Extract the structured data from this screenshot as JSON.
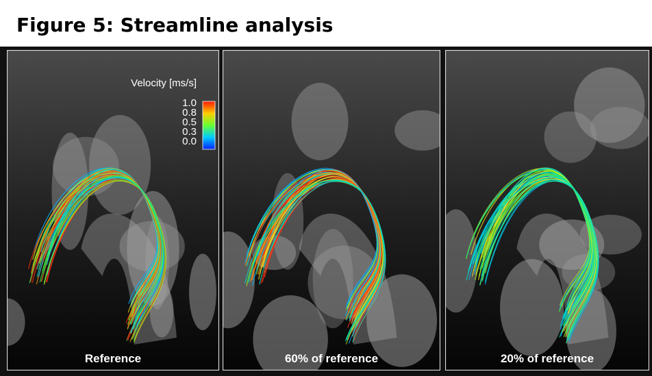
{
  "header": {
    "title": "Figure 5: Streamline analysis"
  },
  "panels": [
    {
      "caption": "Reference"
    },
    {
      "caption": "60% of reference"
    },
    {
      "caption": "20% of reference"
    }
  ],
  "colorbar": {
    "label": "Velocity [ms/s]",
    "ticks": [
      "1.0",
      "0.8",
      "0.5",
      "0.3",
      "0.0"
    ]
  }
}
